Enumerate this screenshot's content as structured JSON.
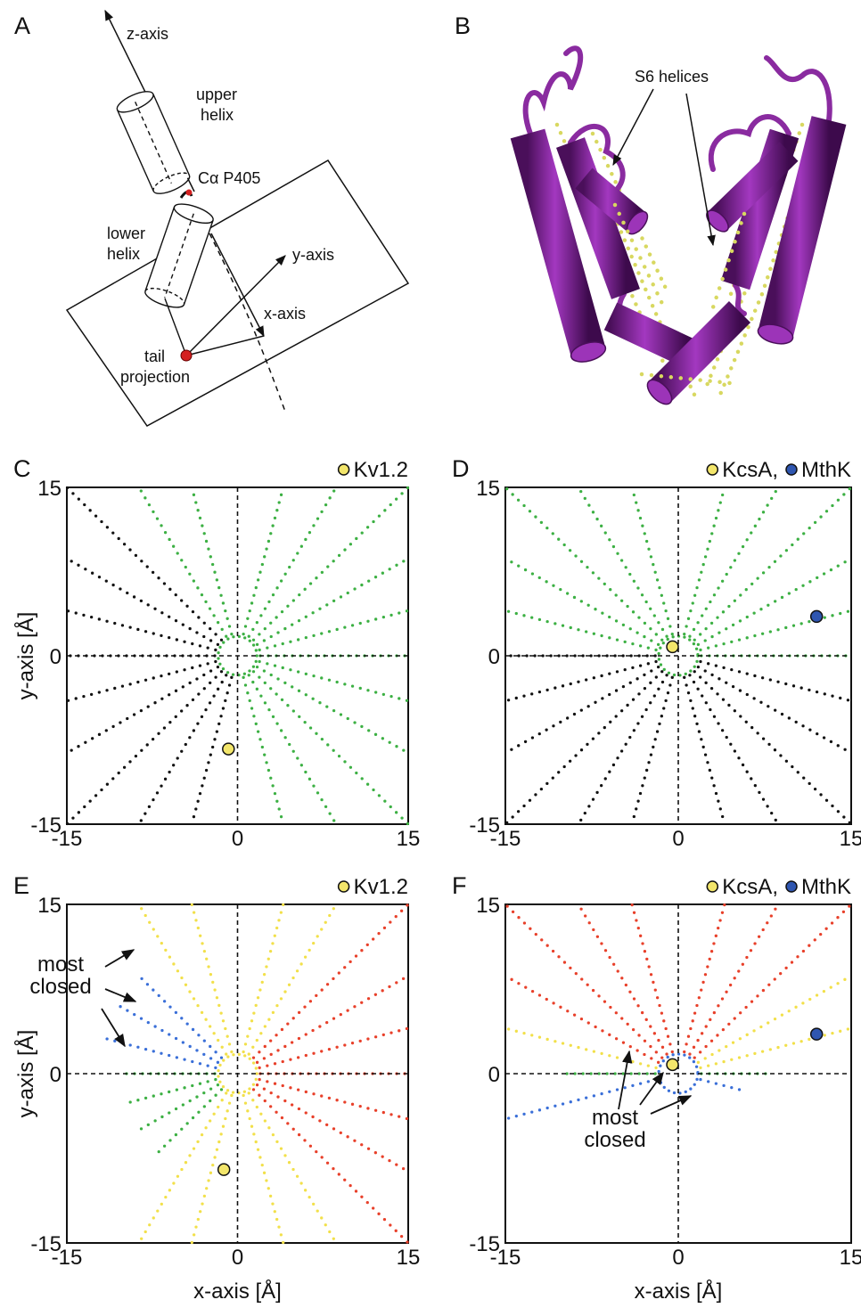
{
  "panel_a": {
    "letter": "A",
    "z_axis": "z-axis",
    "upper_helix": [
      "upper",
      "helix"
    ],
    "ca_label": "Cα P405",
    "lower_helix": [
      "lower",
      "helix"
    ],
    "y_axis": "y-axis",
    "x_axis": "x-axis",
    "tail_projection": [
      "tail",
      "projection"
    ]
  },
  "panel_b": {
    "letter": "B",
    "label": "S6 helices"
  },
  "chart_data": [
    {
      "type": "scatter",
      "panel": "C",
      "xlim": [
        -15,
        15
      ],
      "ylim": [
        -15,
        15
      ],
      "xticks": [
        -15,
        0,
        15
      ],
      "yticks": [
        -15,
        0,
        15
      ],
      "y_label": "y-axis [Å]",
      "ring": {
        "color": "#3cb043",
        "center": [
          0,
          0
        ],
        "radius": 1.7
      },
      "rays": [
        {
          "color": "#3cb043",
          "x": [
            2,
            15
          ],
          "y": [
            0,
            0
          ]
        },
        {
          "color": "#3cb043",
          "x": [
            1.93,
            15
          ],
          "y": [
            0.52,
            4.02
          ]
        },
        {
          "color": "#3cb043",
          "x": [
            1.73,
            15
          ],
          "y": [
            1,
            8.66
          ]
        },
        {
          "color": "#3cb043",
          "x": [
            1.41,
            15
          ],
          "y": [
            1.41,
            15
          ]
        },
        {
          "color": "#3cb043",
          "x": [
            1,
            8.66
          ],
          "y": [
            1.73,
            15
          ]
        },
        {
          "color": "#3cb043",
          "x": [
            0.52,
            4.02
          ],
          "y": [
            1.93,
            15
          ]
        },
        {
          "color": "#3cb043",
          "x": [
            -0.52,
            -4.02
          ],
          "y": [
            1.93,
            15
          ]
        },
        {
          "color": "#3cb043",
          "x": [
            -1,
            -8.66
          ],
          "y": [
            1.73,
            15
          ]
        },
        {
          "color": "#111111",
          "x": [
            -1.41,
            -15
          ],
          "y": [
            1.41,
            15
          ]
        },
        {
          "color": "#111111",
          "x": [
            -1.73,
            -15
          ],
          "y": [
            1,
            8.66
          ]
        },
        {
          "color": "#111111",
          "x": [
            -1.93,
            -15
          ],
          "y": [
            0.52,
            4.02
          ]
        },
        {
          "color": "#111111",
          "x": [
            -2,
            -15
          ],
          "y": [
            0,
            0
          ]
        },
        {
          "color": "#111111",
          "x": [
            -1.93,
            -15
          ],
          "y": [
            -0.52,
            -4.02
          ]
        },
        {
          "color": "#111111",
          "x": [
            -1.73,
            -15
          ],
          "y": [
            -1,
            -8.66
          ]
        },
        {
          "color": "#111111",
          "x": [
            -1.41,
            -15
          ],
          "y": [
            -1.41,
            -15
          ]
        },
        {
          "color": "#111111",
          "x": [
            -1,
            -8.66
          ],
          "y": [
            -1.73,
            -15
          ]
        },
        {
          "color": "#111111",
          "x": [
            -0.52,
            -4.02
          ],
          "y": [
            -1.93,
            -15
          ]
        },
        {
          "color": "#3cb043",
          "x": [
            0.52,
            4.02
          ],
          "y": [
            -1.93,
            -15
          ]
        },
        {
          "color": "#3cb043",
          "x": [
            1,
            8.66
          ],
          "y": [
            -1.73,
            -15
          ]
        },
        {
          "color": "#3cb043",
          "x": [
            1.41,
            15
          ],
          "y": [
            -1.41,
            -15
          ]
        },
        {
          "color": "#3cb043",
          "x": [
            1.73,
            15
          ],
          "y": [
            -1,
            -8.66
          ]
        },
        {
          "color": "#3cb043",
          "x": [
            1.93,
            15
          ],
          "y": [
            -0.52,
            -4.02
          ]
        }
      ],
      "series": [
        {
          "name": "Kv1.2",
          "color": "#f3e66b",
          "x": [
            -0.8
          ],
          "y": [
            -8.3
          ]
        }
      ]
    },
    {
      "type": "scatter",
      "panel": "D",
      "xlim": [
        -15,
        15
      ],
      "ylim": [
        -15,
        15
      ],
      "xticks": [
        -15,
        0,
        15
      ],
      "yticks": [
        -15,
        0,
        15
      ],
      "ring": {
        "color": "#3cb043",
        "center": [
          0,
          0
        ],
        "radius": 1.7
      },
      "rays": [
        {
          "color": "#3cb043",
          "x": [
            2,
            15
          ],
          "y": [
            0,
            0
          ]
        },
        {
          "color": "#3cb043",
          "x": [
            1.93,
            15
          ],
          "y": [
            0.52,
            4.02
          ]
        },
        {
          "color": "#3cb043",
          "x": [
            1.73,
            15
          ],
          "y": [
            1,
            8.66
          ]
        },
        {
          "color": "#3cb043",
          "x": [
            1.41,
            15
          ],
          "y": [
            1.41,
            15
          ]
        },
        {
          "color": "#3cb043",
          "x": [
            1,
            8.66
          ],
          "y": [
            1.73,
            15
          ]
        },
        {
          "color": "#3cb043",
          "x": [
            0.52,
            4.02
          ],
          "y": [
            1.93,
            15
          ]
        },
        {
          "color": "#3cb043",
          "x": [
            -0.52,
            -4.02
          ],
          "y": [
            1.93,
            15
          ]
        },
        {
          "color": "#3cb043",
          "x": [
            -1,
            -8.66
          ],
          "y": [
            1.73,
            15
          ]
        },
        {
          "color": "#3cb043",
          "x": [
            -1.41,
            -15
          ],
          "y": [
            1.41,
            15
          ]
        },
        {
          "color": "#3cb043",
          "x": [
            -1.73,
            -15
          ],
          "y": [
            1,
            8.66
          ]
        },
        {
          "color": "#3cb043",
          "x": [
            -1.93,
            -15
          ],
          "y": [
            0.52,
            4.02
          ]
        },
        {
          "color": "#111111",
          "x": [
            -2,
            -15
          ],
          "y": [
            0,
            0
          ]
        },
        {
          "color": "#111111",
          "x": [
            -1.93,
            -15
          ],
          "y": [
            -0.52,
            -4.02
          ]
        },
        {
          "color": "#111111",
          "x": [
            -1.73,
            -15
          ],
          "y": [
            -1,
            -8.66
          ]
        },
        {
          "color": "#111111",
          "x": [
            -1.41,
            -15
          ],
          "y": [
            -1.41,
            -15
          ]
        },
        {
          "color": "#111111",
          "x": [
            -1,
            -8.66
          ],
          "y": [
            -1.73,
            -15
          ]
        },
        {
          "color": "#111111",
          "x": [
            -0.52,
            -4.02
          ],
          "y": [
            -1.93,
            -15
          ]
        },
        {
          "color": "#111111",
          "x": [
            0.52,
            4.02
          ],
          "y": [
            -1.93,
            -15
          ]
        },
        {
          "color": "#111111",
          "x": [
            1,
            8.66
          ],
          "y": [
            -1.73,
            -15
          ]
        },
        {
          "color": "#111111",
          "x": [
            1.41,
            15
          ],
          "y": [
            -1.41,
            -15
          ]
        },
        {
          "color": "#111111",
          "x": [
            1.73,
            15
          ],
          "y": [
            -1,
            -8.66
          ]
        },
        {
          "color": "#111111",
          "x": [
            1.93,
            15
          ],
          "y": [
            -0.52,
            -4.02
          ]
        }
      ],
      "series": [
        {
          "name": "KcsA,",
          "color": "#f3e66b",
          "x": [
            -0.5
          ],
          "y": [
            0.8
          ]
        },
        {
          "name": "MthK",
          "color": "#2f56b0",
          "x": [
            12
          ],
          "y": [
            3.5
          ]
        }
      ]
    },
    {
      "type": "scatter",
      "panel": "E",
      "xlim": [
        -15,
        15
      ],
      "ylim": [
        -15,
        15
      ],
      "xticks": [
        -15,
        0,
        15
      ],
      "yticks": [
        -15,
        0,
        15
      ],
      "x_label": "x-axis [Å]",
      "y_label": "y-axis [Å]",
      "annotation": [
        "most",
        "closed"
      ],
      "ring": {
        "color": "#f2e04a",
        "center": [
          0,
          0
        ],
        "radius": 1.7
      },
      "rays": [
        {
          "color": "#e8402a",
          "x": [
            2,
            15
          ],
          "y": [
            0,
            0
          ]
        },
        {
          "color": "#e8402a",
          "x": [
            1.93,
            15
          ],
          "y": [
            0.52,
            4.02
          ]
        },
        {
          "color": "#e8402a",
          "x": [
            1.73,
            15
          ],
          "y": [
            1,
            8.66
          ]
        },
        {
          "color": "#e8402a",
          "x": [
            1.41,
            15
          ],
          "y": [
            1.41,
            15
          ]
        },
        {
          "color": "#f2e04a",
          "x": [
            1,
            8.66
          ],
          "y": [
            1.73,
            15
          ]
        },
        {
          "color": "#f2e04a",
          "x": [
            0.52,
            4.02
          ],
          "y": [
            1.93,
            15
          ]
        },
        {
          "color": "#f2e04a",
          "x": [
            -0.52,
            -4.02
          ],
          "y": [
            1.93,
            15
          ]
        },
        {
          "color": "#f2e04a",
          "x": [
            -1,
            -8.66
          ],
          "y": [
            1.73,
            15
          ]
        },
        {
          "color": "#3a6fd8",
          "x": [
            -1.41,
            -8.49
          ],
          "y": [
            1.41,
            8.49
          ]
        },
        {
          "color": "#3a6fd8",
          "x": [
            -1.73,
            -10.39
          ],
          "y": [
            1,
            6
          ]
        },
        {
          "color": "#3a6fd8",
          "x": [
            -1.93,
            -11.59
          ],
          "y": [
            0.52,
            3.11
          ]
        },
        {
          "color": "#3cb043",
          "x": [
            -2,
            -10
          ],
          "y": [
            0,
            0
          ]
        },
        {
          "color": "#3cb043",
          "x": [
            -1.93,
            -9.66
          ],
          "y": [
            -0.52,
            -2.59
          ]
        },
        {
          "color": "#3cb043",
          "x": [
            -1.73,
            -8.66
          ],
          "y": [
            -1,
            -5
          ]
        },
        {
          "color": "#3cb043",
          "x": [
            -1.41,
            -7.07
          ],
          "y": [
            -1.41,
            -7.07
          ]
        },
        {
          "color": "#f2e04a",
          "x": [
            -1,
            -8.66
          ],
          "y": [
            -1.73,
            -15
          ]
        },
        {
          "color": "#f2e04a",
          "x": [
            -0.52,
            -4.02
          ],
          "y": [
            -1.93,
            -15
          ]
        },
        {
          "color": "#f2e04a",
          "x": [
            0.52,
            4.02
          ],
          "y": [
            -1.93,
            -15
          ]
        },
        {
          "color": "#f2e04a",
          "x": [
            1,
            8.66
          ],
          "y": [
            -1.73,
            -15
          ]
        },
        {
          "color": "#e8402a",
          "x": [
            1.41,
            15
          ],
          "y": [
            -1.41,
            -15
          ]
        },
        {
          "color": "#e8402a",
          "x": [
            1.73,
            15
          ],
          "y": [
            -1,
            -8.66
          ]
        },
        {
          "color": "#e8402a",
          "x": [
            1.93,
            15
          ],
          "y": [
            -0.52,
            -4.02
          ]
        }
      ],
      "series": [
        {
          "name": "Kv1.2",
          "color": "#f3e66b",
          "x": [
            -1.2
          ],
          "y": [
            -8.5
          ]
        }
      ]
    },
    {
      "type": "scatter",
      "panel": "F",
      "xlim": [
        -15,
        15
      ],
      "ylim": [
        -15,
        15
      ],
      "xticks": [
        -15,
        0,
        15
      ],
      "yticks": [
        -15,
        0,
        15
      ],
      "x_label": "x-axis [Å]",
      "annotation": [
        "most",
        "closed"
      ],
      "ring": {
        "color": "#3a6fd8",
        "center": [
          0,
          0
        ],
        "radius": 1.7
      },
      "rays": [
        {
          "color": "#3cb043",
          "x": [
            2,
            8
          ],
          "y": [
            0,
            0
          ]
        },
        {
          "color": "#f2e04a",
          "x": [
            1.93,
            15
          ],
          "y": [
            0.52,
            4.02
          ]
        },
        {
          "color": "#f2e04a",
          "x": [
            1.73,
            15
          ],
          "y": [
            1,
            8.66
          ]
        },
        {
          "color": "#e8402a",
          "x": [
            1.41,
            15
          ],
          "y": [
            1.41,
            15
          ]
        },
        {
          "color": "#e8402a",
          "x": [
            1,
            8.66
          ],
          "y": [
            1.73,
            15
          ]
        },
        {
          "color": "#e8402a",
          "x": [
            0.52,
            4.02
          ],
          "y": [
            1.93,
            15
          ]
        },
        {
          "color": "#e8402a",
          "x": [
            -0.52,
            -4.02
          ],
          "y": [
            1.93,
            15
          ]
        },
        {
          "color": "#e8402a",
          "x": [
            -1,
            -8.66
          ],
          "y": [
            1.73,
            15
          ]
        },
        {
          "color": "#e8402a",
          "x": [
            -1.41,
            -15
          ],
          "y": [
            1.41,
            15
          ]
        },
        {
          "color": "#e8402a",
          "x": [
            -1.73,
            -15
          ],
          "y": [
            1,
            8.66
          ]
        },
        {
          "color": "#f2e04a",
          "x": [
            -1.93,
            -15
          ],
          "y": [
            0.52,
            4.02
          ]
        },
        {
          "color": "#3cb043",
          "x": [
            -2,
            -10
          ],
          "y": [
            0,
            0
          ]
        },
        {
          "color": "#3a6fd8",
          "x": [
            -1.93,
            -15
          ],
          "y": [
            -0.52,
            -4.02
          ]
        },
        {
          "color": "#3a6fd8",
          "x": [
            1.93,
            5.8
          ],
          "y": [
            -0.52,
            -1.55
          ]
        }
      ],
      "series": [
        {
          "name": "KcsA,",
          "color": "#f3e66b",
          "x": [
            -0.5
          ],
          "y": [
            0.8
          ]
        },
        {
          "name": "MthK",
          "color": "#2f56b0",
          "x": [
            12
          ],
          "y": [
            3.5
          ]
        }
      ]
    }
  ]
}
